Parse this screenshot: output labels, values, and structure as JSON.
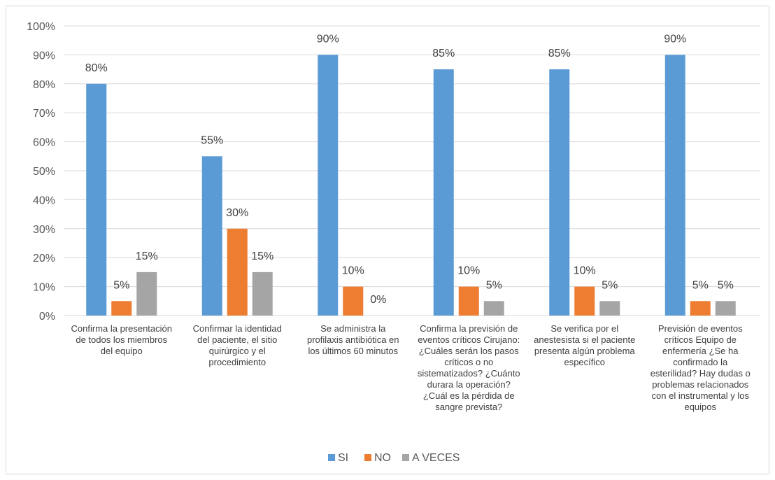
{
  "chart_data": {
    "type": "bar",
    "title": "",
    "xlabel": "",
    "ylabel": "",
    "ylim": [
      0,
      100
    ],
    "yticks": [
      "0%",
      "10%",
      "20%",
      "30%",
      "40%",
      "50%",
      "60%",
      "70%",
      "80%",
      "90%",
      "100%"
    ],
    "grid": true,
    "legend_position": "bottom",
    "categories": [
      [
        "Confirma la presentación",
        "de todos los miembros",
        "del equipo"
      ],
      [
        "Confirmar la identidad",
        "del paciente, el sitio",
        "quirúrgico y el",
        "procedimiento"
      ],
      [
        "Se administra la",
        "profilaxis antibiótica en",
        "los últimos 60 minutos"
      ],
      [
        "Confirma la previsión de",
        "eventos críticos Cirujano:",
        "¿Cuáles serán los pasos",
        "críticos o no",
        "sistematizados? ¿Cuánto",
        "durara la operación?",
        "¿Cuál es la pérdida de",
        "sangre prevista?"
      ],
      [
        "Se verifica por el",
        "anestesista si el paciente",
        "presenta algún problema",
        "específico"
      ],
      [
        "Previsión de eventos",
        "críticos Equipo de",
        "enfermería ¿Se ha",
        "confirmado la",
        "esterilidad? Hay dudas o",
        "problemas relacionados",
        "con el instrumental y los",
        "equipos"
      ]
    ],
    "series": [
      {
        "name": "SI",
        "color": "#5b9bd5",
        "values": [
          80,
          55,
          90,
          85,
          85,
          90
        ],
        "labels": [
          "80%",
          "55%",
          "90%",
          "85%",
          "85%",
          "90%"
        ]
      },
      {
        "name": "NO",
        "color": "#ed7d31",
        "values": [
          5,
          30,
          10,
          10,
          10,
          5
        ],
        "labels": [
          "5%",
          "30%",
          "10%",
          "10%",
          "10%",
          "5%"
        ]
      },
      {
        "name": "A VECES",
        "color": "#a5a5a5",
        "values": [
          15,
          15,
          0,
          5,
          5,
          5
        ],
        "labels": [
          "15%",
          "15%",
          "0%",
          "5%",
          "5%",
          "5%"
        ]
      }
    ]
  }
}
